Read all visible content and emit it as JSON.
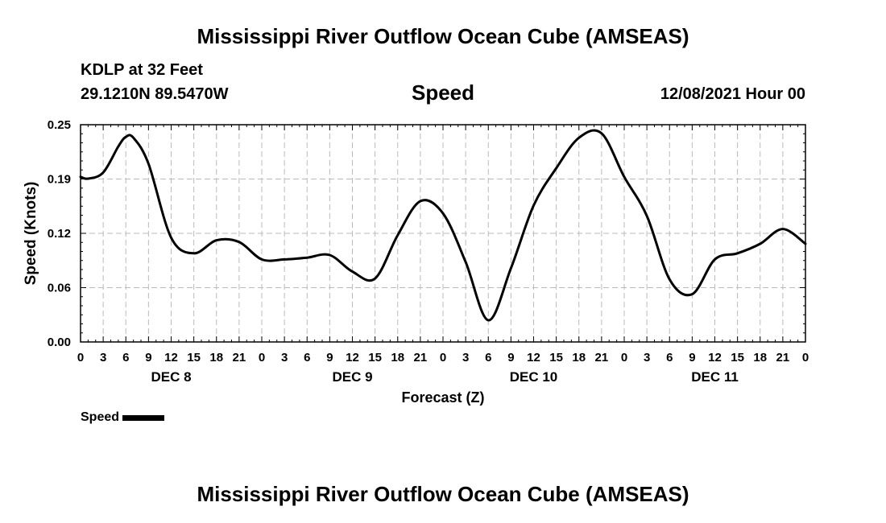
{
  "header": {
    "title": "Mississippi River Outflow Ocean Cube (AMSEAS)",
    "station": "KDLP at 32 Feet",
    "coords": "29.1210N  89.5470W",
    "subtitle": "Speed",
    "datetime": "12/08/2021 Hour 00"
  },
  "footer": {
    "title": "Mississippi River Outflow Ocean Cube (AMSEAS)"
  },
  "legend": {
    "label": "Speed"
  },
  "chart_data": {
    "type": "line",
    "title": "Speed",
    "xlabel": "Forecast (Z)",
    "ylabel": "Speed (Knots)",
    "x_unit": "hours since 12/08/2021 00Z",
    "xlim": [
      0,
      96
    ],
    "ylim": [
      0,
      0.25
    ],
    "yticks": [
      "0.00",
      "0.06",
      "0.12",
      "0.19",
      "0.25"
    ],
    "ytick_values": [
      0,
      0.0625,
      0.125,
      0.1875,
      0.25
    ],
    "xtick_labels": [
      "0",
      "3",
      "6",
      "9",
      "12",
      "15",
      "18",
      "21",
      "0",
      "3",
      "6",
      "9",
      "12",
      "15",
      "18",
      "21",
      "0",
      "3",
      "6",
      "9",
      "12",
      "15",
      "18",
      "21",
      "0",
      "3",
      "6",
      "9",
      "12",
      "15",
      "18",
      "21",
      "0"
    ],
    "day_labels": [
      "DEC 8",
      "DEC 9",
      "DEC 10",
      "DEC 11"
    ],
    "grid": true,
    "legend_position": "bottom-left",
    "series": [
      {
        "name": "Speed",
        "color": "#000000",
        "x": [
          0,
          1,
          3,
          5,
          6,
          7,
          9,
          12,
          15,
          18,
          21,
          24,
          27,
          30,
          33,
          36,
          39,
          42,
          45,
          48,
          51,
          54,
          57,
          60,
          63,
          66,
          69,
          72,
          75,
          78,
          81,
          84,
          87,
          90,
          93,
          96
        ],
        "y": [
          0.19,
          0.188,
          0.195,
          0.225,
          0.236,
          0.235,
          0.205,
          0.12,
          0.102,
          0.117,
          0.115,
          0.095,
          0.095,
          0.097,
          0.1,
          0.081,
          0.073,
          0.123,
          0.162,
          0.148,
          0.092,
          0.025,
          0.085,
          0.157,
          0.2,
          0.235,
          0.24,
          0.19,
          0.145,
          0.072,
          0.055,
          0.095,
          0.102,
          0.113,
          0.13,
          0.113
        ]
      }
    ]
  }
}
